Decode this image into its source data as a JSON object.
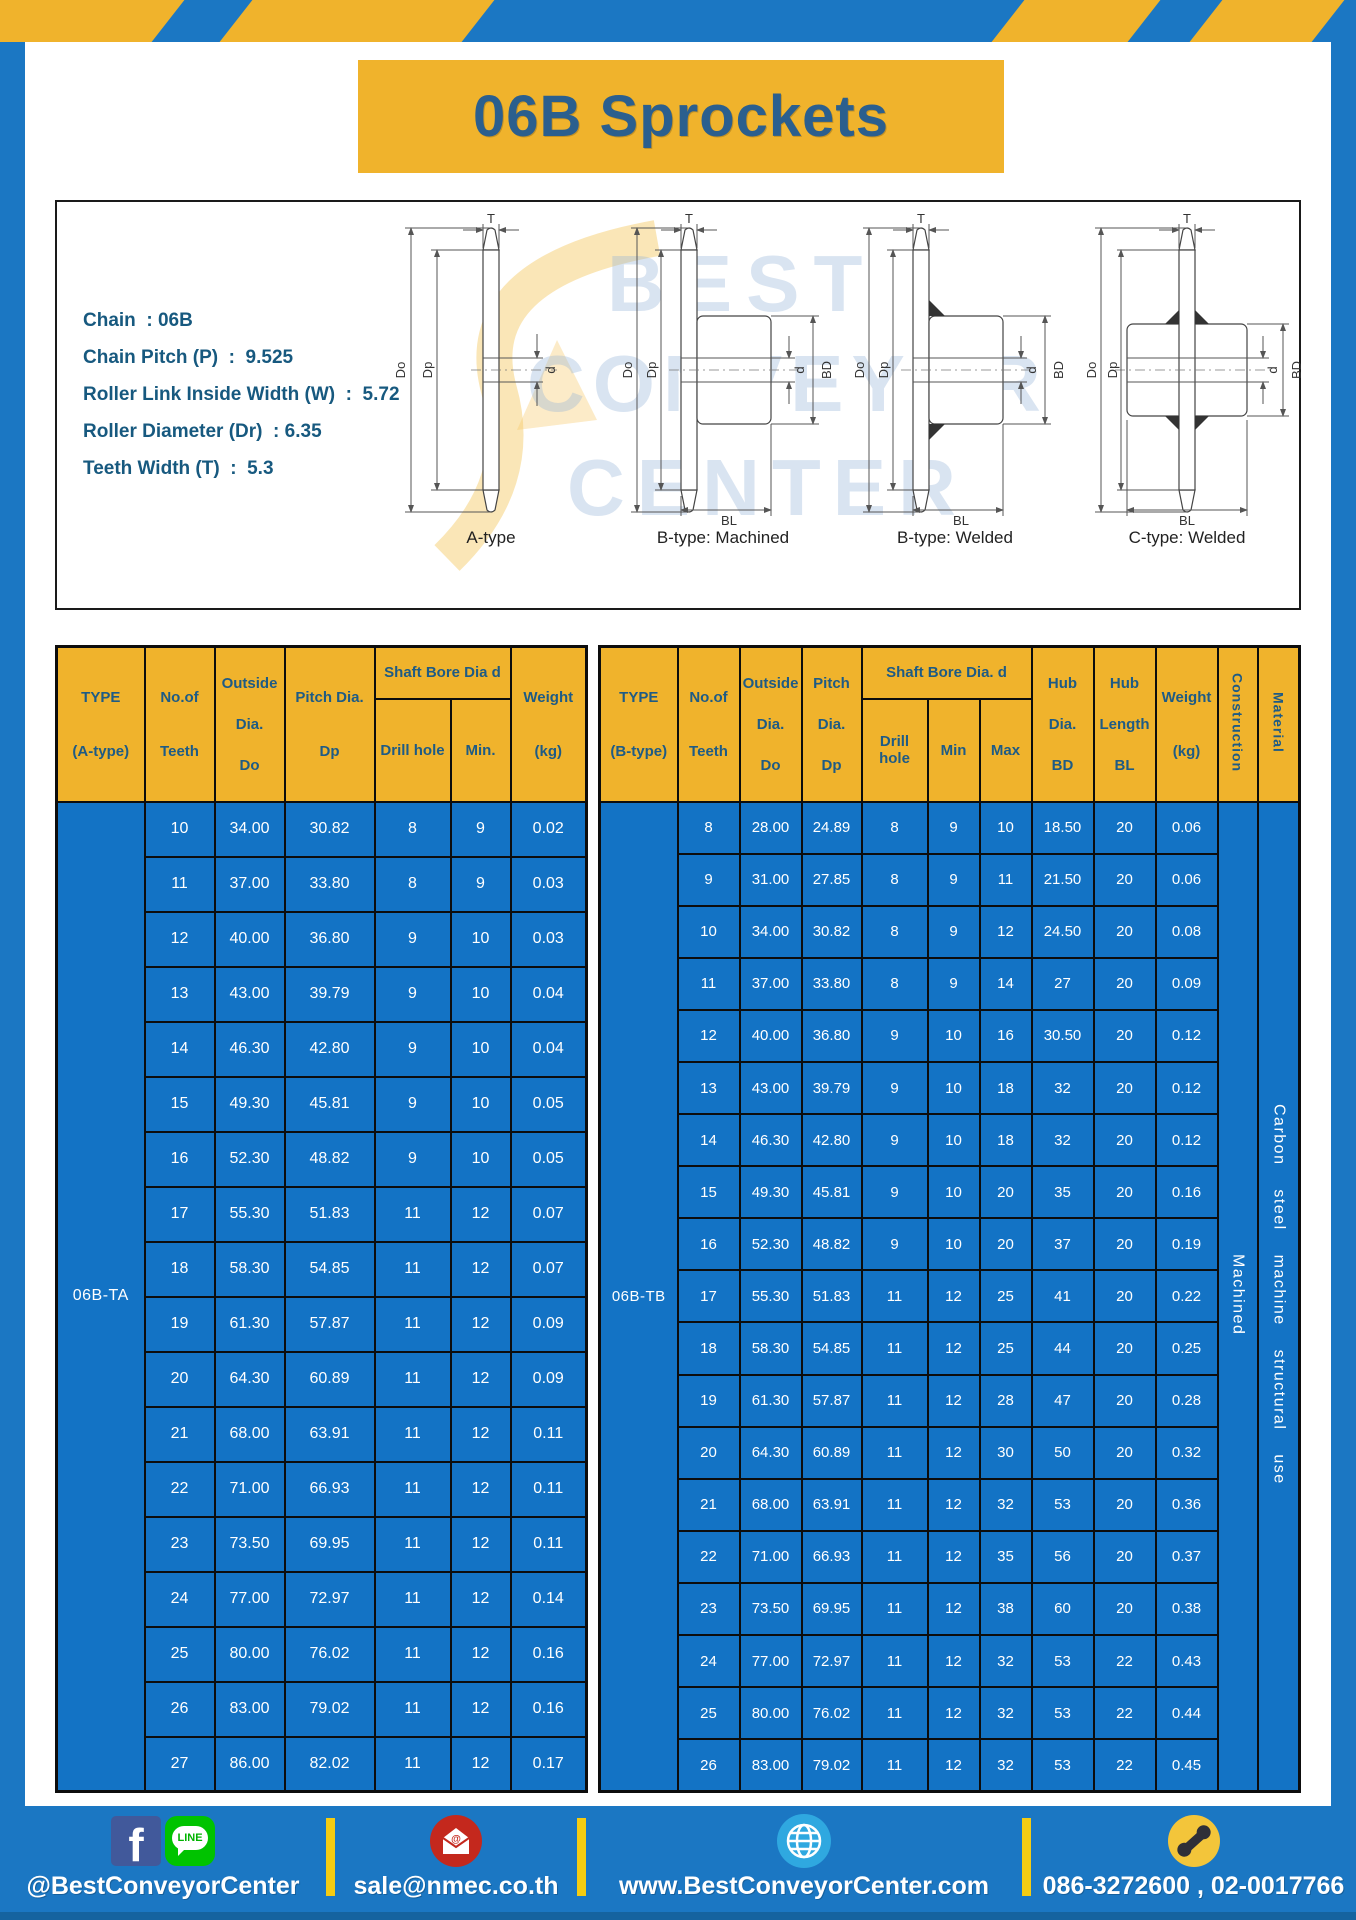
{
  "page": {
    "title": "06B Sprockets"
  },
  "colors": {
    "frame_blue": "#1B77C3",
    "accent_yellow": "#F0B32C",
    "table_cell_blue": "#1373C5",
    "navy_text": "#1E5B85",
    "footer_separator_yellow": "#F5CC12",
    "facebook_blue": "#41599B",
    "line_green": "#00C300",
    "email_red": "#C4281D",
    "globe_blue": "#2FA8E0",
    "phone_yellow": "#F3C53A"
  },
  "specs": {
    "lines": [
      "Chain  : 06B",
      "Chain Pitch (P)  :  9.525",
      "Roller Link Inside Width (W)  :  5.72",
      "Roller Diameter (Dr)  : 6.35",
      "Teeth Width (T)  :  5.3"
    ]
  },
  "watermark": {
    "lines": [
      "BEST",
      "CONVEYOR",
      "CENTER"
    ]
  },
  "diagrams": {
    "figures": [
      "A-type",
      "B-type: Machined",
      "B-type: Welded",
      "C-type: Welded"
    ]
  },
  "dims": {
    "t": "T",
    "do": "Do",
    "dp": "Dp",
    "d": "d",
    "bd": "BD",
    "bl": "BL"
  },
  "tables": {
    "a": {
      "type_label": "06B-TA",
      "headers": {
        "type": [
          "TYPE",
          "(A-type)"
        ],
        "teeth": [
          "No.of",
          "Teeth"
        ],
        "outside": [
          "Outside",
          "Dia.",
          "Do"
        ],
        "pitch": [
          "Pitch Dia.",
          "Dp"
        ],
        "bore_group": "Shaft Bore Dia d",
        "drill": "Drill hole",
        "min": "Min.",
        "weight": [
          "Weight",
          "(kg)"
        ]
      },
      "col_keys": [
        "teeth",
        "outside-dia",
        "pitch-dia",
        "drill-hole",
        "min",
        "weight"
      ],
      "rows": [
        [
          "10",
          "34.00",
          "30.82",
          "8",
          "9",
          "0.02"
        ],
        [
          "11",
          "37.00",
          "33.80",
          "8",
          "9",
          "0.03"
        ],
        [
          "12",
          "40.00",
          "36.80",
          "9",
          "10",
          "0.03"
        ],
        [
          "13",
          "43.00",
          "39.79",
          "9",
          "10",
          "0.04"
        ],
        [
          "14",
          "46.30",
          "42.80",
          "9",
          "10",
          "0.04"
        ],
        [
          "15",
          "49.30",
          "45.81",
          "9",
          "10",
          "0.05"
        ],
        [
          "16",
          "52.30",
          "48.82",
          "9",
          "10",
          "0.05"
        ],
        [
          "17",
          "55.30",
          "51.83",
          "11",
          "12",
          "0.07"
        ],
        [
          "18",
          "58.30",
          "54.85",
          "11",
          "12",
          "0.07"
        ],
        [
          "19",
          "61.30",
          "57.87",
          "11",
          "12",
          "0.09"
        ],
        [
          "20",
          "64.30",
          "60.89",
          "11",
          "12",
          "0.09"
        ],
        [
          "21",
          "68.00",
          "63.91",
          "11",
          "12",
          "0.11"
        ],
        [
          "22",
          "71.00",
          "66.93",
          "11",
          "12",
          "0.11"
        ],
        [
          "23",
          "73.50",
          "69.95",
          "11",
          "12",
          "0.11"
        ],
        [
          "24",
          "77.00",
          "72.97",
          "11",
          "12",
          "0.14"
        ],
        [
          "25",
          "80.00",
          "76.02",
          "11",
          "12",
          "0.16"
        ],
        [
          "26",
          "83.00",
          "79.02",
          "11",
          "12",
          "0.16"
        ],
        [
          "27",
          "86.00",
          "82.02",
          "11",
          "12",
          "0.17"
        ]
      ]
    },
    "b": {
      "type_label": "06B-TB",
      "headers": {
        "type": [
          "TYPE",
          "(B-type)"
        ],
        "teeth": [
          "No.of",
          "Teeth"
        ],
        "outside": [
          "Outside",
          "Dia.",
          "Do"
        ],
        "pitch": [
          "Pitch",
          "Dia.",
          "Dp"
        ],
        "bore_group": "Shaft Bore Dia.  d",
        "drill": "Drill hole",
        "min": "Min",
        "max": "Max",
        "hub_dia": [
          "Hub",
          "Dia.",
          "BD"
        ],
        "hub_len": [
          "Hub",
          "Length",
          "BL"
        ],
        "weight": [
          "Weight",
          "(kg)"
        ],
        "construction": "Construction",
        "material": "Material"
      },
      "col_keys": [
        "teeth",
        "outside-dia",
        "pitch-dia",
        "drill-hole",
        "min",
        "max",
        "hub-dia",
        "hub-length",
        "weight"
      ],
      "vertical": {
        "construction": "Machined",
        "material": "Carbon steel machine structural use"
      },
      "rows": [
        [
          "8",
          "28.00",
          "24.89",
          "8",
          "9",
          "10",
          "18.50",
          "20",
          "0.06"
        ],
        [
          "9",
          "31.00",
          "27.85",
          "8",
          "9",
          "11",
          "21.50",
          "20",
          "0.06"
        ],
        [
          "10",
          "34.00",
          "30.82",
          "8",
          "9",
          "12",
          "24.50",
          "20",
          "0.08"
        ],
        [
          "11",
          "37.00",
          "33.80",
          "8",
          "9",
          "14",
          "27",
          "20",
          "0.09"
        ],
        [
          "12",
          "40.00",
          "36.80",
          "9",
          "10",
          "16",
          "30.50",
          "20",
          "0.12"
        ],
        [
          "13",
          "43.00",
          "39.79",
          "9",
          "10",
          "18",
          "32",
          "20",
          "0.12"
        ],
        [
          "14",
          "46.30",
          "42.80",
          "9",
          "10",
          "18",
          "32",
          "20",
          "0.12"
        ],
        [
          "15",
          "49.30",
          "45.81",
          "9",
          "10",
          "20",
          "35",
          "20",
          "0.16"
        ],
        [
          "16",
          "52.30",
          "48.82",
          "9",
          "10",
          "20",
          "37",
          "20",
          "0.19"
        ],
        [
          "17",
          "55.30",
          "51.83",
          "11",
          "12",
          "25",
          "41",
          "20",
          "0.22"
        ],
        [
          "18",
          "58.30",
          "54.85",
          "11",
          "12",
          "25",
          "44",
          "20",
          "0.25"
        ],
        [
          "19",
          "61.30",
          "57.87",
          "11",
          "12",
          "28",
          "47",
          "20",
          "0.28"
        ],
        [
          "20",
          "64.30",
          "60.89",
          "11",
          "12",
          "30",
          "50",
          "20",
          "0.32"
        ],
        [
          "21",
          "68.00",
          "63.91",
          "11",
          "12",
          "32",
          "53",
          "20",
          "0.36"
        ],
        [
          "22",
          "71.00",
          "66.93",
          "11",
          "12",
          "35",
          "56",
          "20",
          "0.37"
        ],
        [
          "23",
          "73.50",
          "69.95",
          "11",
          "12",
          "38",
          "60",
          "20",
          "0.38"
        ],
        [
          "24",
          "77.00",
          "72.97",
          "11",
          "12",
          "32",
          "53",
          "22",
          "0.43"
        ],
        [
          "25",
          "80.00",
          "76.02",
          "11",
          "12",
          "32",
          "53",
          "22",
          "0.44"
        ],
        [
          "26",
          "83.00",
          "79.02",
          "11",
          "12",
          "32",
          "53",
          "22",
          "0.45"
        ]
      ]
    }
  },
  "footer": {
    "social": "@BestConveyorCenter",
    "line_label": "LINE",
    "email": "sale@nmec.co.th",
    "website": "www.BestConveyorCenter.com",
    "phone": "086-3272600 , 02-0017766"
  }
}
